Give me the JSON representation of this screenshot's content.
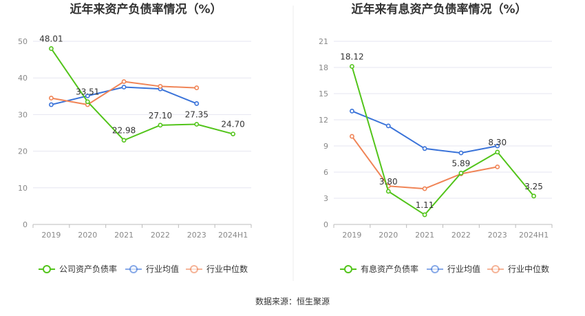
{
  "source_text": "数据来源：恒生聚源",
  "colors": {
    "company": "#52c41a",
    "industry_avg": "#3a73d9",
    "industry_median": "#f08456",
    "grid": "#e6e6f0",
    "axis": "#bbbbbb",
    "divider": "#eeeeee"
  },
  "chart_data": [
    {
      "type": "line",
      "title": "近年来资产负债率情况（%）",
      "categories": [
        "2019",
        "2020",
        "2021",
        "2022",
        "2023",
        "2024H1"
      ],
      "ylim": [
        0,
        50
      ],
      "yticks": [
        "0",
        "10",
        "20",
        "30",
        "40",
        "50"
      ],
      "series": [
        {
          "name": "公司资产负债率",
          "key": "company",
          "values": [
            48.01,
            33.51,
            22.98,
            27.1,
            27.35,
            24.7
          ],
          "labels": [
            "48.01",
            "33.51",
            "22.98",
            "27.10",
            "27.35",
            "24.70"
          ]
        },
        {
          "name": "行业均值",
          "key": "industry_avg",
          "values": [
            32.7,
            35.1,
            37.5,
            37.0,
            33.0,
            null
          ]
        },
        {
          "name": "行业中位数",
          "key": "industry_median",
          "values": [
            34.5,
            32.7,
            39.0,
            37.7,
            37.3,
            null
          ]
        }
      ]
    },
    {
      "type": "line",
      "title": "近年来有息资产负债率情况（%）",
      "categories": [
        "2019",
        "2020",
        "2021",
        "2022",
        "2023",
        "2024H1"
      ],
      "ylim": [
        0,
        21
      ],
      "yticks": [
        "0",
        "3",
        "6",
        "9",
        "12",
        "15",
        "18",
        "21"
      ],
      "series": [
        {
          "name": "有息资产负债率",
          "key": "company",
          "values": [
            18.12,
            3.8,
            1.11,
            5.89,
            8.3,
            3.25
          ],
          "labels": [
            "18.12",
            "3.80",
            "1.11",
            "5.89",
            "8.30",
            "3.25"
          ]
        },
        {
          "name": "行业均值",
          "key": "industry_avg",
          "values": [
            13.0,
            11.3,
            8.7,
            8.2,
            9.0,
            null
          ]
        },
        {
          "name": "行业中位数",
          "key": "industry_median",
          "values": [
            10.1,
            4.4,
            4.1,
            5.8,
            6.6,
            null
          ]
        }
      ]
    }
  ]
}
